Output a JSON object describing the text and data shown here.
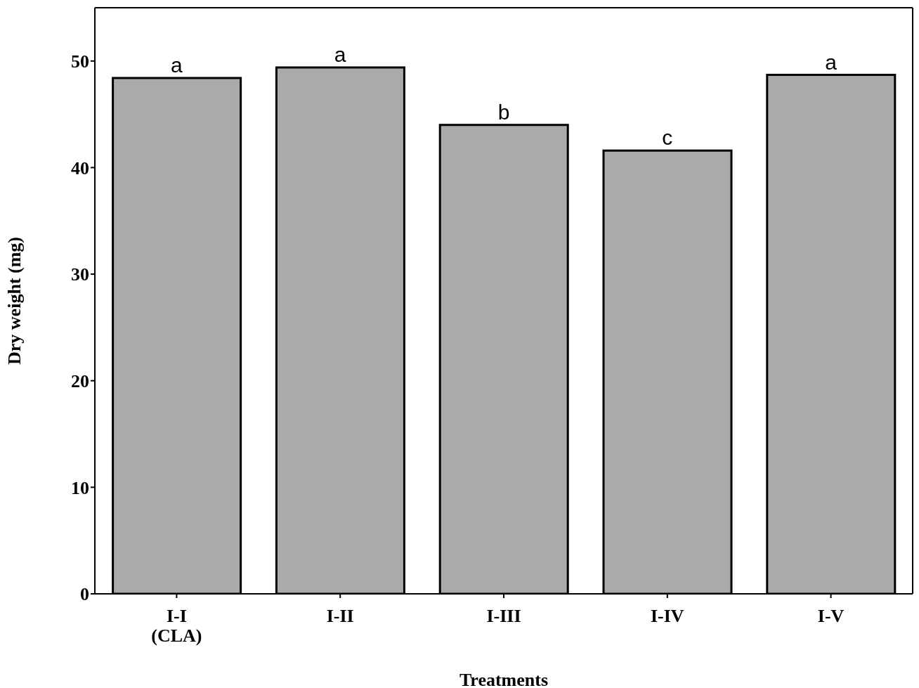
{
  "chart_data": {
    "type": "bar",
    "xlabel": "Treatments",
    "ylabel": "Dry weight (mg)",
    "categories": [
      "I-I\n(CLA)",
      "I-II",
      "I-III",
      "I-IV",
      "I-V"
    ],
    "values": [
      48.4,
      49.4,
      44.0,
      41.6,
      48.7
    ],
    "color": "#aaaaaa",
    "ylim": [
      0,
      55
    ],
    "yticks": [
      0,
      10,
      20,
      30,
      40,
      50
    ],
    "annotations": [
      {
        "text": "a",
        "x": "I-I\n(CLA)",
        "y": 48.4
      },
      {
        "text": "a",
        "x": "I-II",
        "y": 49.4
      },
      {
        "text": "b",
        "x": "I-III",
        "y": 44.0
      },
      {
        "text": "c",
        "x": "I-IV",
        "y": 41.6
      },
      {
        "text": "a",
        "x": "I-V",
        "y": 48.7
      }
    ]
  }
}
